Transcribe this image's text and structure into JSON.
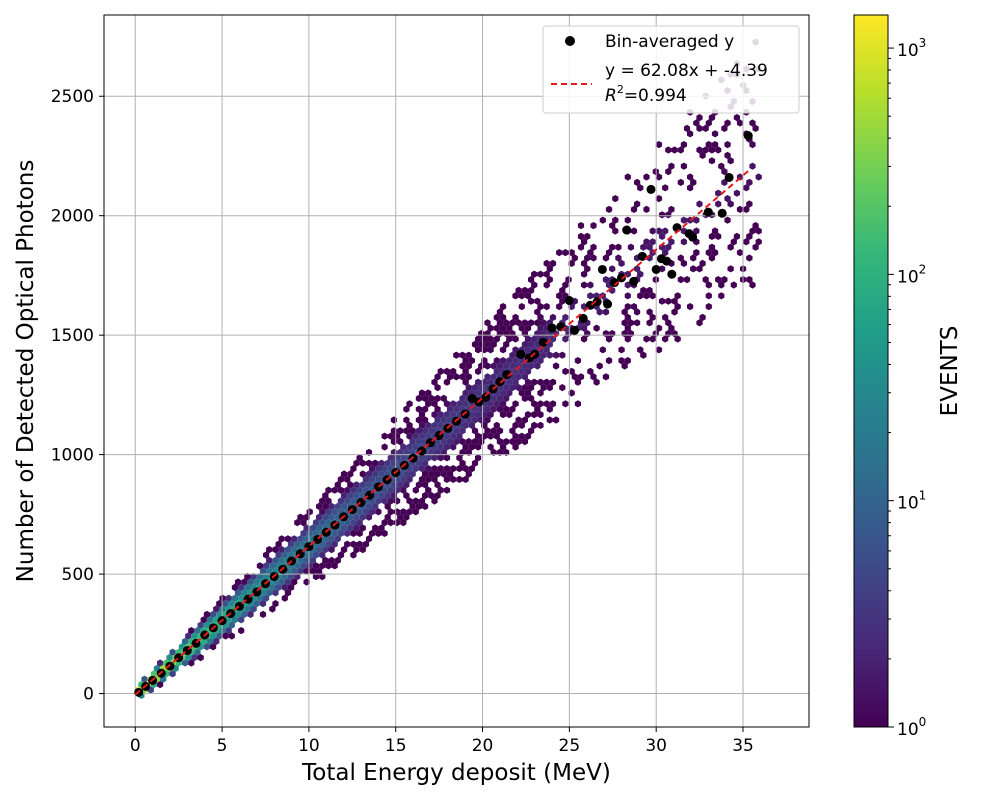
{
  "chart_data": {
    "type": "hexbin-scatter",
    "xlabel": "Total Energy deposit (MeV)",
    "ylabel": "Number of Detected Optical Photons",
    "xlim": [
      -1.8,
      38.8
    ],
    "ylim": [
      -140,
      2840
    ],
    "xticks": [
      0,
      5,
      10,
      15,
      20,
      25,
      30,
      35
    ],
    "yticks": [
      0,
      500,
      1000,
      1500,
      2000,
      2500
    ],
    "grid": true,
    "fit": {
      "slope": 62.08,
      "intercept": -4.39,
      "r2": 0.994,
      "x_range": [
        0,
        35.3
      ]
    },
    "legend": {
      "position": "top-right",
      "points_label": "Bin-averaged y",
      "fit_label": "y = 62.08x + -4.39",
      "r2_label_prefix": "R",
      "r2_label_sup": "2",
      "r2_label_value": "=0.994"
    },
    "binned_means": {
      "x": [
        0.2,
        0.6,
        1.0,
        1.5,
        2.0,
        2.5,
        3.0,
        3.5,
        4.0,
        4.5,
        5.0,
        5.5,
        6.0,
        6.5,
        7.0,
        7.5,
        8.0,
        8.5,
        9.0,
        9.5,
        10.0,
        10.5,
        11.0,
        11.5,
        12.0,
        12.5,
        13.0,
        13.5,
        14.0,
        14.5,
        15.0,
        15.5,
        16.0,
        16.5,
        17.0,
        17.5,
        18.0,
        18.5,
        19.0,
        19.4,
        19.8,
        20.2,
        20.6,
        21.0,
        21.4,
        22.2,
        22.7,
        23.0,
        23.5,
        24.0,
        24.5,
        25.0,
        25.3,
        25.8,
        26.2,
        26.6,
        26.9,
        27.2,
        27.6,
        28.0,
        28.3,
        28.7,
        29.2,
        29.7,
        30.0,
        30.3,
        30.6,
        30.9,
        31.2,
        31.9,
        32.1,
        33.0,
        33.8,
        34.2,
        35.3
      ],
      "y": [
        5,
        30,
        55,
        85,
        115,
        150,
        180,
        210,
        245,
        275,
        305,
        335,
        365,
        395,
        425,
        460,
        490,
        520,
        555,
        585,
        615,
        645,
        675,
        705,
        740,
        770,
        800,
        830,
        865,
        895,
        925,
        955,
        985,
        1015,
        1050,
        1080,
        1110,
        1140,
        1170,
        1235,
        1220,
        1240,
        1275,
        1305,
        1335,
        1420,
        1405,
        1420,
        1470,
        1530,
        1535,
        1645,
        1520,
        1570,
        1625,
        1640,
        1775,
        1630,
        1720,
        1740,
        1940,
        1725,
        1830,
        2110,
        1775,
        1820,
        1810,
        1755,
        1950,
        1925,
        1910,
        2015,
        2010,
        2160,
        2335
      ]
    },
    "colorbar": {
      "label": "EVENTS",
      "scale": "log",
      "range": [
        1,
        1400
      ],
      "ticks": [
        {
          "value": 1,
          "base": "10",
          "exp": "0"
        },
        {
          "value": 10,
          "base": "10",
          "exp": "1"
        },
        {
          "value": 100,
          "base": "10",
          "exp": "2"
        },
        {
          "value": 1000,
          "base": "10",
          "exp": "3"
        }
      ],
      "colormap": "viridis"
    },
    "colors": {
      "fit_line": "#e41a1c",
      "points": "#000000",
      "grid": "#b0b0b0",
      "viridis": [
        "#440154",
        "#482878",
        "#3e4989",
        "#31688e",
        "#26828e",
        "#1f9e89",
        "#35b779",
        "#6ece58",
        "#b5de2b",
        "#fde725"
      ]
    }
  }
}
